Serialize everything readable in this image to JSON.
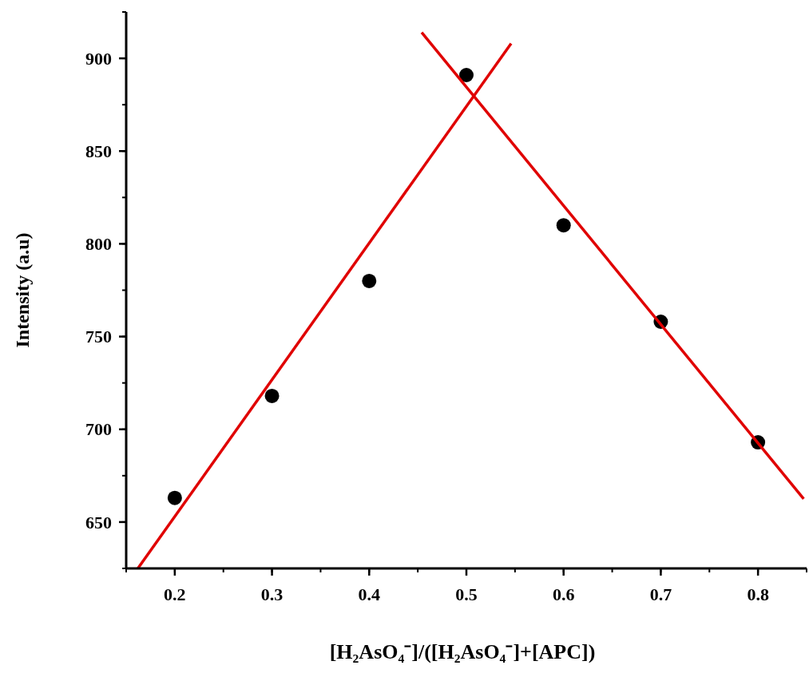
{
  "chart_data": {
    "type": "scatter",
    "xlabel": "[H₂AsO₄⁻]/([H₂AsO₄⁻]+[APC])",
    "ylabel": "Intensity (a.u)",
    "xlim": [
      0.15,
      0.85
    ],
    "ylim": [
      625,
      925
    ],
    "xticks": [
      0.2,
      0.3,
      0.4,
      0.5,
      0.6,
      0.7,
      0.8
    ],
    "yticks": [
      650,
      700,
      750,
      800,
      850,
      900
    ],
    "marker": "circle",
    "series": [
      {
        "color": "#000000",
        "x": [
          0.2,
          0.3,
          0.4,
          0.5,
          0.6,
          0.7,
          0.8
        ],
        "values": [
          663,
          718,
          780,
          891,
          810,
          758,
          693
        ]
      },
      {
        "type": "line",
        "color": "#e00000",
        "marker": "none",
        "x": [
          0.162,
          0.546
        ],
        "values": [
          625,
          908
        ]
      },
      {
        "type": "line",
        "color": "#e00000",
        "marker": "none",
        "x": [
          0.454,
          0.847
        ],
        "values": [
          914,
          662.5
        ]
      }
    ]
  }
}
